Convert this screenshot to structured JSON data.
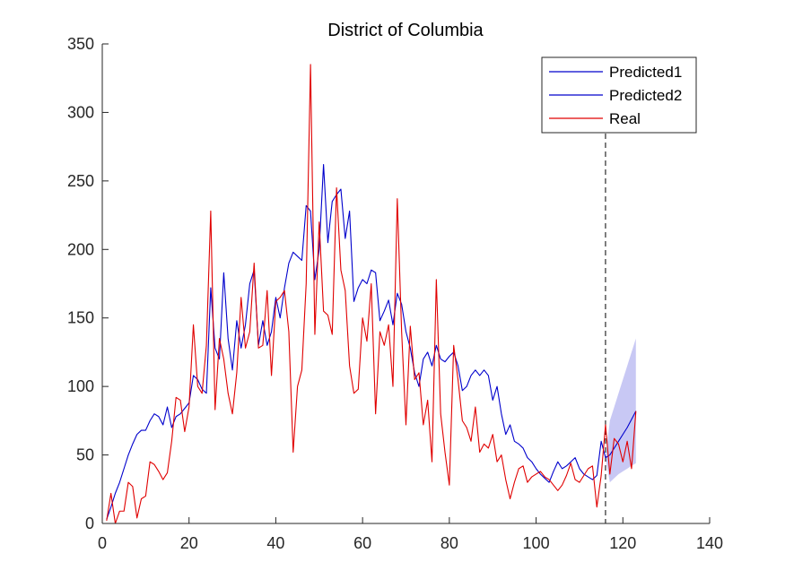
{
  "chart_data": {
    "type": "line",
    "title": "District of Columbia",
    "xlim": [
      0,
      140
    ],
    "ylim": [
      0,
      350
    ],
    "xticks": [
      0,
      20,
      40,
      60,
      80,
      100,
      120,
      140
    ],
    "yticks": [
      0,
      50,
      100,
      150,
      200,
      250,
      300,
      350
    ],
    "xtick_labels": [
      "0",
      "20",
      "40",
      "60",
      "80",
      "100",
      "120",
      "140"
    ],
    "ytick_labels": [
      "0",
      "50",
      "100",
      "150",
      "200",
      "250",
      "300",
      "350"
    ],
    "grid": false,
    "legend_position": "top-right",
    "legend": [
      "Predicted1",
      "Predicted2",
      "Real"
    ],
    "vline_x": 116,
    "colors": {
      "predicted": "#0000cc",
      "real": "#e00000",
      "band": "#c8c8f4",
      "axis": "#262626",
      "vline": "#000000"
    },
    "series": [
      {
        "name": "Predicted1",
        "x": [
          1,
          2,
          3,
          4,
          5,
          6,
          7,
          8,
          9,
          10,
          11,
          12,
          13,
          14,
          15,
          16,
          17,
          18,
          19,
          20,
          21,
          22,
          23,
          24,
          25,
          26,
          27,
          28,
          29,
          30,
          31,
          32,
          33,
          34,
          35,
          36,
          37,
          38,
          39,
          40,
          41,
          42,
          43,
          44,
          45,
          46,
          47,
          48,
          49,
          50,
          51,
          52,
          53,
          54,
          55,
          56,
          57,
          58,
          59,
          60,
          61,
          62,
          63,
          64,
          65,
          66,
          67,
          68,
          69,
          70,
          71,
          72,
          73,
          74,
          75,
          76,
          77,
          78,
          79,
          80,
          81,
          82,
          83,
          84,
          85,
          86,
          87,
          88,
          89,
          90,
          91,
          92,
          93,
          94,
          95,
          96,
          97,
          98,
          99,
          100,
          101,
          102,
          103,
          104,
          105,
          106,
          107,
          108,
          109,
          110,
          111,
          112,
          113,
          114,
          115,
          116
        ],
        "values": [
          3,
          12,
          22,
          30,
          40,
          50,
          58,
          65,
          68,
          68,
          75,
          80,
          78,
          72,
          85,
          70,
          78,
          80,
          84,
          88,
          108,
          105,
          98,
          95,
          172,
          128,
          120,
          183,
          135,
          112,
          148,
          128,
          145,
          175,
          185,
          130,
          148,
          130,
          140,
          165,
          150,
          172,
          190,
          198,
          195,
          192,
          232,
          228,
          178,
          200,
          262,
          205,
          235,
          240,
          244,
          208,
          228,
          162,
          172,
          178,
          175,
          185,
          183,
          148,
          155,
          163,
          145,
          168,
          160,
          140,
          128,
          110,
          100,
          120,
          125,
          115,
          130,
          120,
          118,
          122,
          125,
          115,
          97,
          100,
          108,
          112,
          108,
          112,
          108,
          90,
          100,
          80,
          65,
          72,
          60,
          58,
          55,
          48,
          45,
          40,
          36,
          33,
          30,
          38,
          45,
          40,
          42,
          45,
          48,
          40,
          36,
          34,
          32,
          35,
          60,
          48
        ],
        "color": "#0000cc"
      },
      {
        "name": "Predicted2",
        "x": [
          116,
          117,
          118,
          119,
          120,
          121,
          122,
          123
        ],
        "values": [
          48,
          50,
          55,
          60,
          65,
          70,
          76,
          82
        ],
        "color": "#0000cc",
        "upper": [
          48,
          75,
          85,
          95,
          105,
          115,
          125,
          135
        ],
        "lower": [
          48,
          30,
          33,
          36,
          38,
          40,
          42,
          44
        ]
      },
      {
        "name": "Real",
        "x": [
          1,
          2,
          3,
          4,
          5,
          6,
          7,
          8,
          9,
          10,
          11,
          12,
          13,
          14,
          15,
          16,
          17,
          18,
          19,
          20,
          21,
          22,
          23,
          24,
          25,
          26,
          27,
          28,
          29,
          30,
          31,
          32,
          33,
          34,
          35,
          36,
          37,
          38,
          39,
          40,
          41,
          42,
          43,
          44,
          45,
          46,
          47,
          48,
          49,
          50,
          51,
          52,
          53,
          54,
          55,
          56,
          57,
          58,
          59,
          60,
          61,
          62,
          63,
          64,
          65,
          66,
          67,
          68,
          69,
          70,
          71,
          72,
          73,
          74,
          75,
          76,
          77,
          78,
          79,
          80,
          81,
          82,
          83,
          84,
          85,
          86,
          87,
          88,
          89,
          90,
          91,
          92,
          93,
          94,
          95,
          96,
          97,
          98,
          99,
          100,
          101,
          102,
          103,
          104,
          105,
          106,
          107,
          108,
          109,
          110,
          111,
          112,
          113,
          114,
          115,
          116,
          117,
          118,
          119,
          120,
          121,
          122,
          123
        ],
        "values": [
          2,
          22,
          0,
          9,
          9,
          30,
          27,
          4,
          18,
          20,
          45,
          43,
          38,
          32,
          37,
          60,
          92,
          90,
          67,
          85,
          145,
          100,
          95,
          130,
          228,
          83,
          135,
          120,
          95,
          80,
          110,
          165,
          128,
          140,
          190,
          128,
          130,
          170,
          108,
          162,
          165,
          170,
          140,
          52,
          100,
          112,
          175,
          335,
          138,
          220,
          155,
          152,
          138,
          245,
          185,
          170,
          115,
          95,
          98,
          150,
          133,
          175,
          80,
          140,
          130,
          145,
          100,
          237,
          140,
          72,
          144,
          105,
          110,
          72,
          90,
          45,
          178,
          80,
          52,
          28,
          130,
          105,
          75,
          70,
          60,
          85,
          52,
          58,
          55,
          65,
          45,
          50,
          32,
          18,
          30,
          40,
          42,
          30,
          34,
          36,
          38,
          34,
          32,
          28,
          24,
          28,
          35,
          44,
          32,
          30,
          35,
          40,
          42,
          12,
          35,
          72,
          36,
          62,
          58,
          45,
          60,
          40,
          82
        ],
        "color": "#e00000"
      }
    ]
  }
}
